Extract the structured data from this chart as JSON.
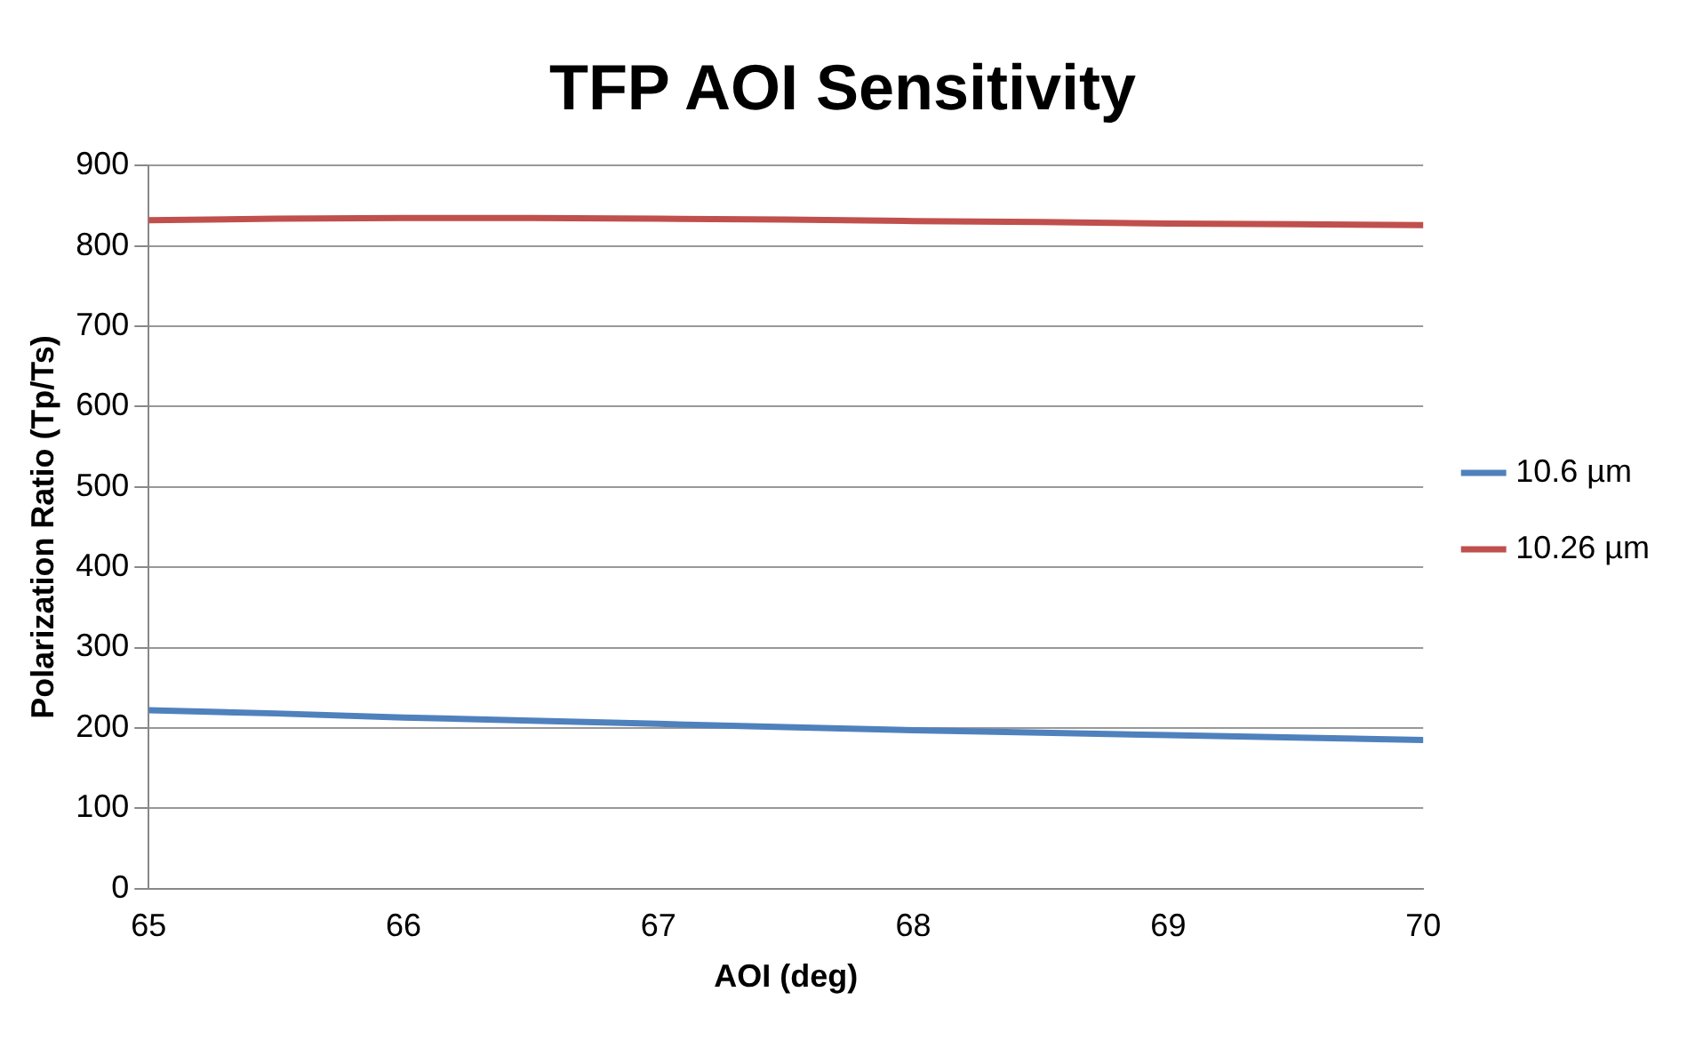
{
  "chart_data": {
    "type": "line",
    "title": "TFP AOI Sensitivity",
    "xlabel": "AOI (deg)",
    "ylabel": "Polarization Ratio (Tp/Ts)",
    "x": [
      65,
      65.5,
      66,
      66.5,
      67,
      67.5,
      68,
      68.5,
      69,
      69.5,
      70
    ],
    "series": [
      {
        "name": "10.6 µm",
        "color": "#4f81bd",
        "values": [
          222,
          218,
          213,
          209,
          205,
          201,
          197,
          194,
          191,
          188,
          185
        ]
      },
      {
        "name": "10.26 µm",
        "color": "#c0504d",
        "values": [
          832,
          834,
          835,
          835,
          834,
          833,
          831,
          830,
          828,
          827,
          826
        ]
      }
    ],
    "xlim": [
      65,
      70
    ],
    "xticks": [
      65,
      66,
      67,
      68,
      69,
      70
    ],
    "ylim": [
      0,
      900
    ],
    "yticks": [
      0,
      100,
      200,
      300,
      400,
      500,
      600,
      700,
      800,
      900
    ],
    "grid": "y",
    "legend": "right",
    "marker": "none",
    "line_style": "solid"
  }
}
